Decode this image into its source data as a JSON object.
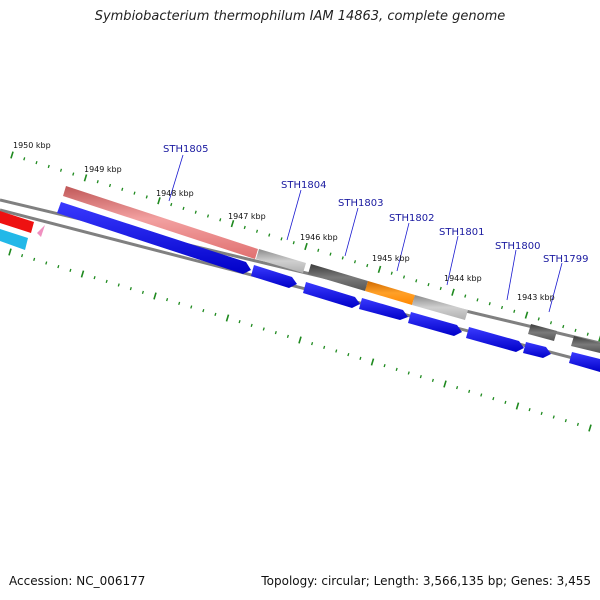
{
  "title": "Symbiobacterium thermophilum IAM 14863, complete genome",
  "footer": {
    "accession": "Accession: NC_006177",
    "summary": "Topology: circular; Length: 3,566,135 bp; Genes: 3,455"
  },
  "kbp_labels": [
    "1950 kbp",
    "1949 kbp",
    "1948 kbp",
    "1947 kbp",
    "1946 kbp",
    "1945 kbp",
    "1944 kbp",
    "1943 kbp"
  ],
  "gene_labels": [
    "STH1805",
    "STH1804",
    "STH1803",
    "STH1802",
    "STH1801",
    "STH1800",
    "STH1799"
  ],
  "colors": {
    "backbone": "#808080",
    "tick": "#1f8a1f",
    "cds": "#1010e8",
    "salmon": "#e88080",
    "light_gray": "#b8b8b8",
    "dark_gray": "#606060",
    "orange": "#ff8c00",
    "red": "#ee1111",
    "cyan": "#22b8e8",
    "pink": "#f090c0",
    "label": "#1a1aa0"
  }
}
